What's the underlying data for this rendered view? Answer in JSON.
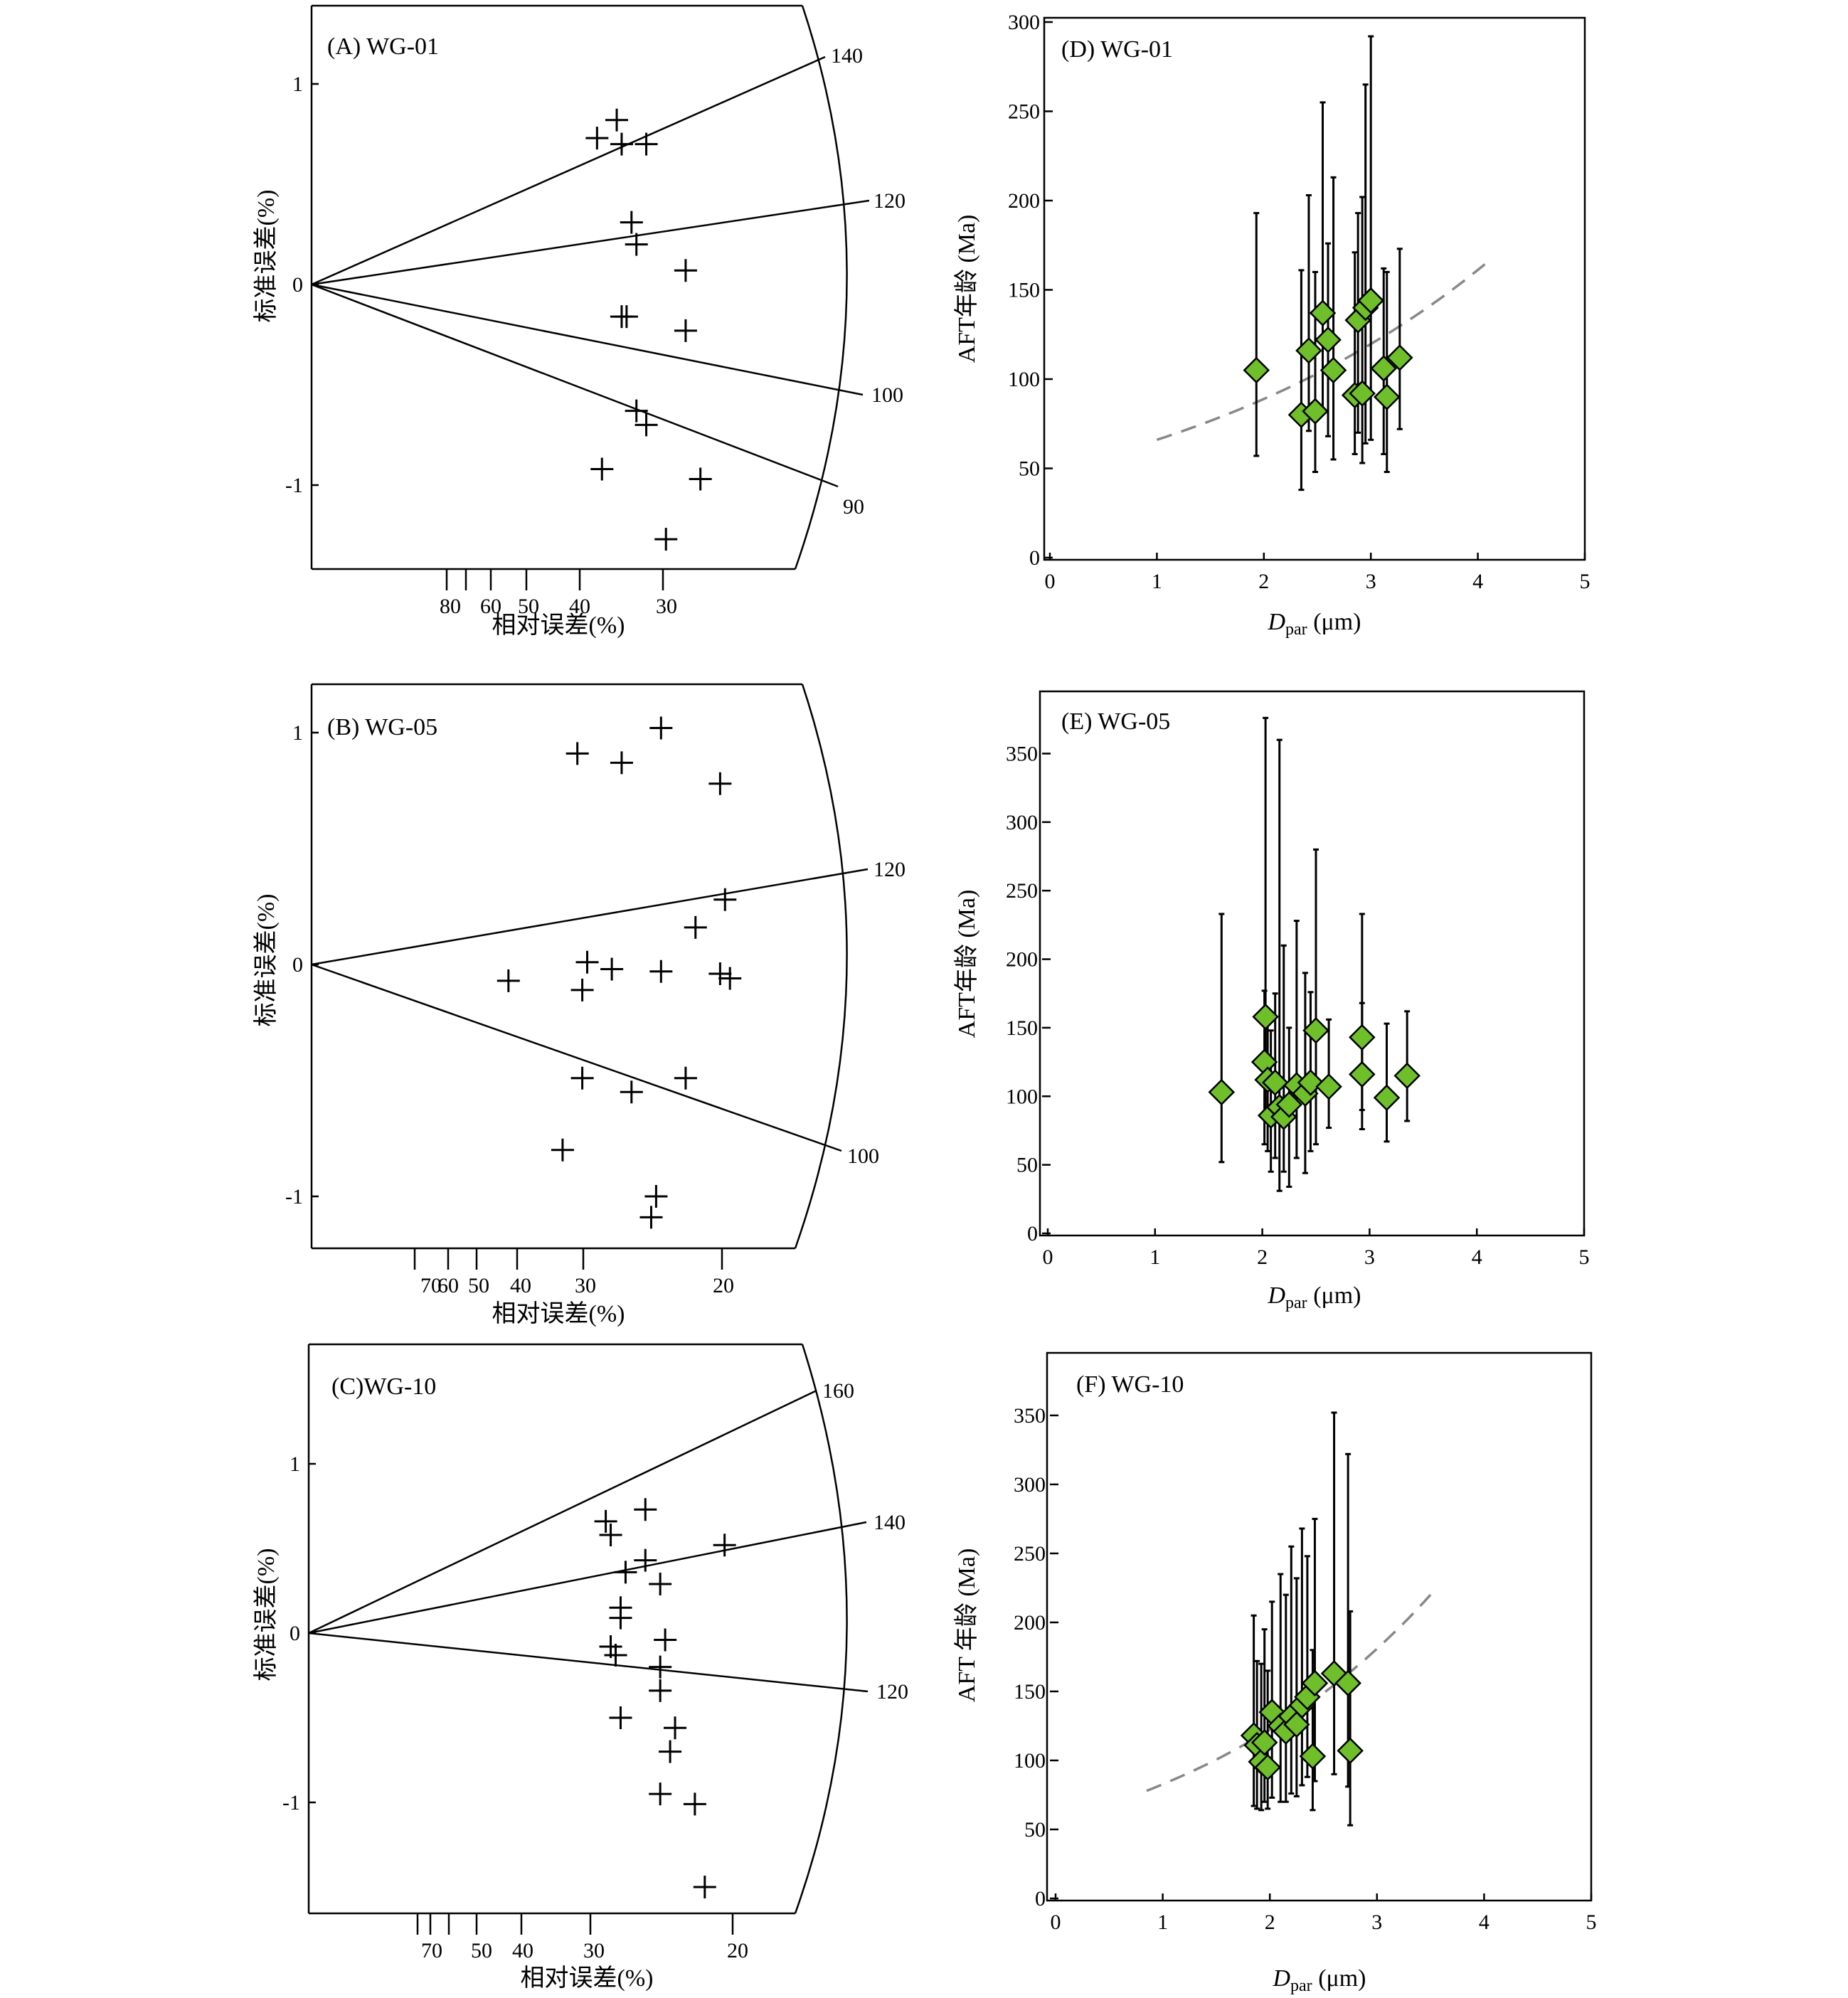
{
  "radial_plots": [
    {
      "id": "A",
      "title": "(A) WG-01",
      "ylabel": "标准误差(%)",
      "xlabel": "相对误差(%)",
      "y_ticks": [
        "1",
        "0",
        "-1"
      ],
      "x_ticks": [
        "80",
        "60",
        "50",
        "40",
        "30"
      ],
      "age_ticks": [
        "140",
        "120",
        "100",
        "90"
      ],
      "points": [
        {
          "x": 0.42,
          "y": 0.73
        },
        {
          "x": 0.38,
          "y": 0.82
        },
        {
          "x": 0.37,
          "y": 0.7
        },
        {
          "x": 0.32,
          "y": 0.7
        },
        {
          "x": 0.35,
          "y": 0.31
        },
        {
          "x": 0.34,
          "y": 0.2
        },
        {
          "x": 0.24,
          "y": 0.07
        },
        {
          "x": 0.37,
          "y": -0.16
        },
        {
          "x": 0.36,
          "y": -0.16
        },
        {
          "x": 0.24,
          "y": -0.23
        },
        {
          "x": 0.34,
          "y": -0.63
        },
        {
          "x": 0.32,
          "y": -0.7
        },
        {
          "x": 0.41,
          "y": -0.92
        },
        {
          "x": 0.21,
          "y": -0.97
        },
        {
          "x": 0.28,
          "y": -1.27
        }
      ]
    },
    {
      "id": "B",
      "title": "(B) WG-05",
      "ylabel": "标准误差(%)",
      "xlabel": "相对误差(%)",
      "y_ticks": [
        "1",
        "0",
        "-1"
      ],
      "x_ticks": [
        "70",
        "60",
        "50",
        "40",
        "30",
        "20"
      ],
      "age_ticks": [
        "120",
        "100"
      ],
      "points": [
        {
          "x": 0.46,
          "y": 0.91
        },
        {
          "x": 0.37,
          "y": 0.87
        },
        {
          "x": 0.29,
          "y": 1.02
        },
        {
          "x": 0.17,
          "y": 0.78
        },
        {
          "x": 0.16,
          "y": 0.28
        },
        {
          "x": 0.22,
          "y": 0.16
        },
        {
          "x": 0.44,
          "y": 0.01
        },
        {
          "x": 0.39,
          "y": -0.02
        },
        {
          "x": 0.29,
          "y": -0.03
        },
        {
          "x": 0.17,
          "y": -0.04
        },
        {
          "x": 0.15,
          "y": -0.06
        },
        {
          "x": 0.6,
          "y": -0.07
        },
        {
          "x": 0.45,
          "y": -0.11
        },
        {
          "x": 0.45,
          "y": -0.49
        },
        {
          "x": 0.35,
          "y": -0.55
        },
        {
          "x": 0.24,
          "y": -0.49
        },
        {
          "x": 0.49,
          "y": -0.8
        },
        {
          "x": 0.3,
          "y": -1.0
        },
        {
          "x": 0.31,
          "y": -1.09
        }
      ]
    },
    {
      "id": "C",
      "title": "(C)WG-10",
      "ylabel": "标准误差(%)",
      "xlabel": "相对误差(%)",
      "y_ticks": [
        "1",
        "0",
        "-1"
      ],
      "x_ticks": [
        "70",
        "50",
        "40",
        "30",
        "20"
      ],
      "age_ticks": [
        "160",
        "140",
        "120"
      ],
      "points": [
        {
          "x": 0.4,
          "y": 0.66
        },
        {
          "x": 0.39,
          "y": 0.58
        },
        {
          "x": 0.32,
          "y": 0.73
        },
        {
          "x": 0.32,
          "y": 0.43
        },
        {
          "x": 0.36,
          "y": 0.36
        },
        {
          "x": 0.29,
          "y": 0.29
        },
        {
          "x": 0.37,
          "y": 0.15
        },
        {
          "x": 0.37,
          "y": 0.09
        },
        {
          "x": 0.28,
          "y": -0.04
        },
        {
          "x": 0.39,
          "y": -0.08
        },
        {
          "x": 0.38,
          "y": -0.13
        },
        {
          "x": 0.29,
          "y": -0.2
        },
        {
          "x": 0.29,
          "y": -0.34
        },
        {
          "x": 0.37,
          "y": -0.5
        },
        {
          "x": 0.26,
          "y": -0.56
        },
        {
          "x": 0.27,
          "y": -0.7
        },
        {
          "x": 0.29,
          "y": -0.95
        },
        {
          "x": 0.22,
          "y": -1.01
        },
        {
          "x": 0.2,
          "y": -1.5
        },
        {
          "x": 0.16,
          "y": 0.52
        }
      ]
    }
  ],
  "chart_data": [
    {
      "type": "scatter",
      "id": "D",
      "title": "(D) WG-01",
      "xlabel_main": "D",
      "xlabel_sub": "par",
      "xlabel_unit": " (μm)",
      "ylabel": "AFT年龄 (Ma)",
      "xlim": [
        0,
        5
      ],
      "ylim": [
        0,
        300
      ],
      "x_ticks": [
        0,
        1,
        2,
        3,
        4,
        5
      ],
      "y_ticks": [
        0,
        50,
        100,
        150,
        200,
        250,
        300
      ],
      "trend": {
        "x0": 1.0,
        "x1": 4.1,
        "y0": 66,
        "y1": 166
      },
      "points": [
        {
          "x": 1.93,
          "y": 105,
          "lo": 57,
          "hi": 193
        },
        {
          "x": 2.35,
          "y": 80,
          "lo": 38,
          "hi": 161
        },
        {
          "x": 2.42,
          "y": 116,
          "lo": 71,
          "hi": 203
        },
        {
          "x": 2.48,
          "y": 82,
          "lo": 48,
          "hi": 160
        },
        {
          "x": 2.55,
          "y": 137,
          "lo": 83,
          "hi": 255
        },
        {
          "x": 2.6,
          "y": 122,
          "lo": 68,
          "hi": 176
        },
        {
          "x": 2.65,
          "y": 105,
          "lo": 55,
          "hi": 213
        },
        {
          "x": 2.85,
          "y": 91,
          "lo": 58,
          "hi": 171
        },
        {
          "x": 2.88,
          "y": 133,
          "lo": 70,
          "hi": 193
        },
        {
          "x": 2.92,
          "y": 92,
          "lo": 53,
          "hi": 202
        },
        {
          "x": 2.95,
          "y": 140,
          "lo": 64,
          "hi": 265
        },
        {
          "x": 3.0,
          "y": 144,
          "lo": 66,
          "hi": 292
        },
        {
          "x": 3.12,
          "y": 106,
          "lo": 58,
          "hi": 162
        },
        {
          "x": 3.15,
          "y": 90,
          "lo": 48,
          "hi": 160
        },
        {
          "x": 3.27,
          "y": 112,
          "lo": 72,
          "hi": 173
        }
      ]
    },
    {
      "type": "scatter",
      "id": "E",
      "title": "(E) WG-05",
      "xlabel_main": "D",
      "xlabel_sub": "par",
      "xlabel_unit": " (μm)",
      "ylabel": "AFT年龄 (Ma)",
      "xlim": [
        0,
        5
      ],
      "ylim": [
        0,
        385
      ],
      "x_ticks": [
        0,
        1,
        2,
        3,
        4,
        5
      ],
      "y_ticks": [
        0,
        50,
        100,
        150,
        200,
        250,
        300,
        350
      ],
      "points": [
        {
          "x": 1.62,
          "y": 103,
          "lo": 52,
          "hi": 233
        },
        {
          "x": 2.03,
          "y": 158,
          "lo": 87,
          "hi": 376
        },
        {
          "x": 2.02,
          "y": 125,
          "lo": 65,
          "hi": 177
        },
        {
          "x": 2.05,
          "y": 112,
          "lo": 60,
          "hi": 163
        },
        {
          "x": 2.08,
          "y": 86,
          "lo": 45,
          "hi": 148
        },
        {
          "x": 2.12,
          "y": 110,
          "lo": 55,
          "hi": 175
        },
        {
          "x": 2.16,
          "y": 92,
          "lo": 31,
          "hi": 360
        },
        {
          "x": 2.2,
          "y": 85,
          "lo": 45,
          "hi": 210
        },
        {
          "x": 2.25,
          "y": 94,
          "lo": 34,
          "hi": 150
        },
        {
          "x": 2.32,
          "y": 108,
          "lo": 55,
          "hi": 228
        },
        {
          "x": 2.4,
          "y": 102,
          "lo": 44,
          "hi": 190
        },
        {
          "x": 2.45,
          "y": 110,
          "lo": 60,
          "hi": 176
        },
        {
          "x": 2.5,
          "y": 148,
          "lo": 65,
          "hi": 280
        },
        {
          "x": 2.62,
          "y": 107,
          "lo": 77,
          "hi": 156
        },
        {
          "x": 2.93,
          "y": 143,
          "lo": 90,
          "hi": 233
        },
        {
          "x": 2.93,
          "y": 116,
          "lo": 76,
          "hi": 168
        },
        {
          "x": 3.16,
          "y": 99,
          "lo": 67,
          "hi": 153
        },
        {
          "x": 3.35,
          "y": 115,
          "lo": 82,
          "hi": 162
        }
      ]
    },
    {
      "type": "scatter",
      "id": "F",
      "title": "(F)  WG-10",
      "xlabel_main": "D",
      "xlabel_sub": "par",
      "xlabel_unit": " (μm)",
      "ylabel": "AFT 年龄  (Ma)",
      "xlim": [
        0,
        5
      ],
      "ylim": [
        0,
        385
      ],
      "x_ticks": [
        0,
        1,
        2,
        3,
        4,
        5
      ],
      "y_ticks": [
        0,
        50,
        100,
        150,
        200,
        250,
        300,
        350
      ],
      "trend": {
        "x0": 0.85,
        "x1": 3.5,
        "y0": 78,
        "y1": 220
      },
      "points": [
        {
          "x": 1.85,
          "y": 118,
          "lo": 67,
          "hi": 205
        },
        {
          "x": 1.88,
          "y": 111,
          "lo": 65,
          "hi": 172
        },
        {
          "x": 1.92,
          "y": 99,
          "lo": 64,
          "hi": 170
        },
        {
          "x": 1.95,
          "y": 113,
          "lo": 70,
          "hi": 195
        },
        {
          "x": 1.98,
          "y": 95,
          "lo": 65,
          "hi": 165
        },
        {
          "x": 2.02,
          "y": 135,
          "lo": 73,
          "hi": 215
        },
        {
          "x": 2.1,
          "y": 125,
          "lo": 70,
          "hi": 235
        },
        {
          "x": 2.15,
          "y": 121,
          "lo": 70,
          "hi": 220
        },
        {
          "x": 2.2,
          "y": 132,
          "lo": 76,
          "hi": 255
        },
        {
          "x": 2.25,
          "y": 126,
          "lo": 74,
          "hi": 232
        },
        {
          "x": 2.3,
          "y": 140,
          "lo": 82,
          "hi": 268
        },
        {
          "x": 2.35,
          "y": 146,
          "lo": 88,
          "hi": 248
        },
        {
          "x": 2.4,
          "y": 103,
          "lo": 64,
          "hi": 180
        },
        {
          "x": 2.42,
          "y": 156,
          "lo": 85,
          "hi": 275
        },
        {
          "x": 2.6,
          "y": 163,
          "lo": 90,
          "hi": 352
        },
        {
          "x": 2.73,
          "y": 156,
          "lo": 81,
          "hi": 322
        },
        {
          "x": 2.75,
          "y": 107,
          "lo": 53,
          "hi": 208
        }
      ]
    }
  ],
  "colors": {
    "marker_fill": "#6fbf2a",
    "marker_stroke": "#000000",
    "trend": "#888888",
    "axis": "#000000"
  }
}
